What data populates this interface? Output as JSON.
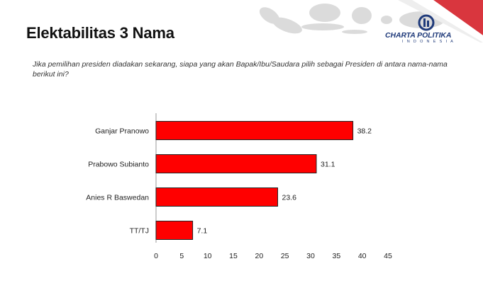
{
  "slide": {
    "title": "Elektabilitas 3 Nama",
    "question": "Jika pemilihan presiden diadakan sekarang, siapa yang akan Bapak/Ibu/Saudara pilih sebagai Presiden di antara nama-nama berikut ini?"
  },
  "logo": {
    "name": "CHARTA POLITIKA",
    "sub": "INDONESIA",
    "color": "#1f3a7a"
  },
  "colors": {
    "bar_fill": "#ff0000",
    "bar_stroke": "#222222",
    "accent_red": "#d9363e",
    "map_gray": "#d8d8d8"
  },
  "chart_data": {
    "type": "bar",
    "orientation": "horizontal",
    "categories": [
      "Ganjar Pranowo",
      "Prabowo Subianto",
      "Anies R Baswedan",
      "TT/TJ"
    ],
    "values": [
      38.2,
      31.1,
      23.6,
      7.1
    ],
    "xlim": [
      0,
      45
    ],
    "xticks": [
      0,
      5,
      10,
      15,
      20,
      25,
      30,
      35,
      40,
      45
    ],
    "grid": false,
    "legend": "none"
  }
}
